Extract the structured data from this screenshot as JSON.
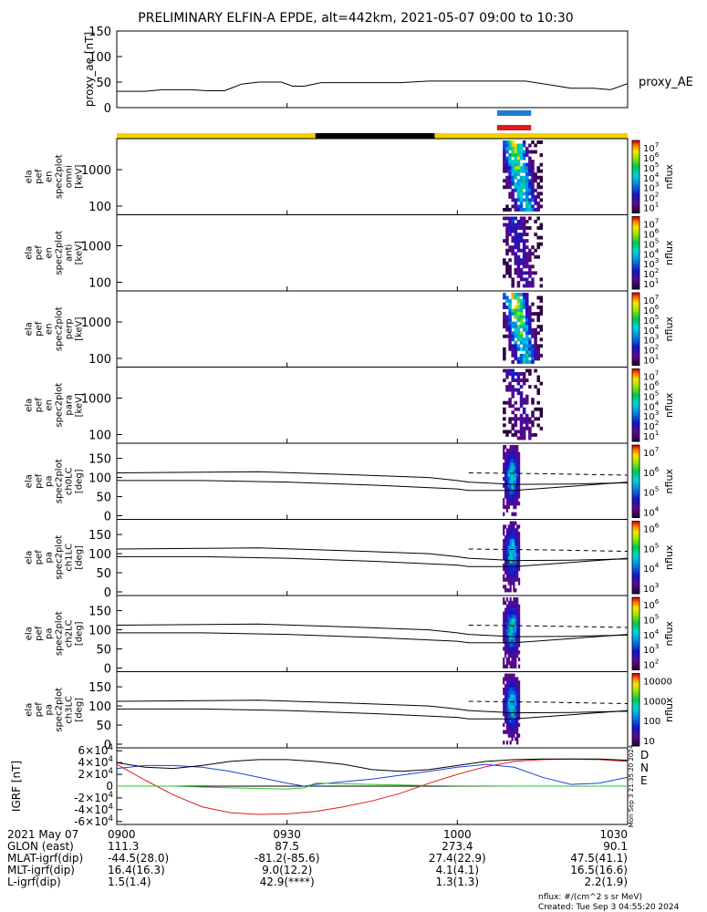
{
  "chart_data": {
    "type": "spectrogram",
    "title": "PRELIMINARY ELFIN-A EPDE, alt=442km, 2021-05-07 09:00 to 10:30",
    "xlim": [
      "09:00",
      "10:30"
    ],
    "colors": {
      "background": "#ffffff",
      "axes": "#000000",
      "state_bar_science": "#f5d000",
      "state_bar_eclipse": "#000000",
      "marker_blue": "#1e7bd6",
      "marker_red": "#e01a1a",
      "grf_d": "#e01a1a",
      "grf_n": "#1f3fd0",
      "grf_e": "#29c329"
    },
    "proxy_ae": {
      "ylabel": "proxy_ae [nT]",
      "legend": "proxy_AE",
      "ylim": [
        0,
        150
      ],
      "yticks": [
        "150",
        "100",
        "50",
        "0"
      ],
      "series": [
        {
          "t": "09:00",
          "v": 32
        },
        {
          "t": "09:05",
          "v": 32
        },
        {
          "t": "09:08",
          "v": 35
        },
        {
          "t": "09:13",
          "v": 35
        },
        {
          "t": "09:16",
          "v": 33
        },
        {
          "t": "09:19",
          "v": 33
        },
        {
          "t": "09:22",
          "v": 46
        },
        {
          "t": "09:25",
          "v": 50
        },
        {
          "t": "09:29",
          "v": 50
        },
        {
          "t": "09:31",
          "v": 42
        },
        {
          "t": "09:33",
          "v": 42
        },
        {
          "t": "09:36",
          "v": 49
        },
        {
          "t": "09:50",
          "v": 49
        },
        {
          "t": "09:55",
          "v": 52
        },
        {
          "t": "10:00",
          "v": 52
        },
        {
          "t": "10:06",
          "v": 52
        },
        {
          "t": "10:12",
          "v": 52
        },
        {
          "t": "10:16",
          "v": 45
        },
        {
          "t": "10:20",
          "v": 38
        },
        {
          "t": "10:24",
          "v": 38
        },
        {
          "t": "10:27",
          "v": 35
        },
        {
          "t": "10:30",
          "v": 47
        }
      ]
    },
    "state_bar": [
      {
        "start": "09:00",
        "end": "09:35",
        "state": "science"
      },
      {
        "start": "09:35",
        "end": "09:56",
        "state": "eclipse"
      },
      {
        "start": "09:56",
        "end": "10:30",
        "state": "science"
      }
    ],
    "markers": [
      {
        "color": "blue",
        "start": "10:07",
        "end": "10:13"
      },
      {
        "color": "red",
        "start": "10:07",
        "end": "10:13"
      }
    ],
    "energy_panels": [
      {
        "ylabel": [
          "ela",
          "pef",
          "en",
          "spec2plot",
          "omni",
          "[keV]"
        ],
        "yticks": [
          "1000",
          "100"
        ],
        "cbar_ticks": [
          "10^7",
          "10^6",
          "10^5",
          "10^4",
          "10^3",
          "10^2",
          "10^1"
        ],
        "cbar_label": "nflux",
        "intensity": 1.0
      },
      {
        "ylabel": [
          "ela",
          "pef",
          "en",
          "spec2plot",
          "anti",
          "[keV]"
        ],
        "yticks": [
          "1000",
          "100"
        ],
        "cbar_ticks": [
          "10^7",
          "10^6",
          "10^5",
          "10^4",
          "10^3",
          "10^2",
          "10^1"
        ],
        "cbar_label": "nflux",
        "intensity": 0.35
      },
      {
        "ylabel": [
          "ela",
          "pef",
          "en",
          "spec2plot",
          "perp",
          "[keV]"
        ],
        "yticks": [
          "1000",
          "100"
        ],
        "cbar_ticks": [
          "10^7",
          "10^6",
          "10^5",
          "10^4",
          "10^3",
          "10^2",
          "10^1"
        ],
        "cbar_label": "nflux",
        "intensity": 1.0
      },
      {
        "ylabel": [
          "ela",
          "pef",
          "en",
          "spec2plot",
          "para",
          "[keV]"
        ],
        "yticks": [
          "1000",
          "100"
        ],
        "cbar_ticks": [
          "10^7",
          "10^6",
          "10^5",
          "10^4",
          "10^3",
          "10^2",
          "10^1"
        ],
        "cbar_label": "nflux",
        "intensity": 0.3
      }
    ],
    "pitch_panels": [
      {
        "ylabel": [
          "ela",
          "pef",
          "pa",
          "spec2plot",
          "ch0LC",
          "[deg]"
        ],
        "yticks": [
          "150",
          "100",
          "50",
          "0"
        ],
        "cbar_ticks": [
          "10^7",
          "10^6",
          "10^5",
          "10^4"
        ],
        "cbar_label": "nflux"
      },
      {
        "ylabel": [
          "ela",
          "pef",
          "pa",
          "spec2plot",
          "ch1LC",
          "[deg]"
        ],
        "yticks": [
          "150",
          "100",
          "50",
          "0"
        ],
        "cbar_ticks": [
          "10^6",
          "10^5",
          "10^4",
          "10^3"
        ],
        "cbar_label": "nflux"
      },
      {
        "ylabel": [
          "ela",
          "pef",
          "pa",
          "spec2plot",
          "ch2LC",
          "[deg]"
        ],
        "yticks": [
          "150",
          "100",
          "50",
          "0"
        ],
        "cbar_ticks": [
          "10^6",
          "10^5",
          "10^4",
          "10^3",
          "10^2"
        ],
        "cbar_label": "nflux"
      },
      {
        "ylabel": [
          "ela",
          "pef",
          "pa",
          "spec2plot",
          "ch3LC",
          "[deg]"
        ],
        "yticks": [
          "150",
          "100",
          "50",
          "0"
        ],
        "cbar_ticks": [
          "10000",
          "1000",
          "100",
          "10"
        ],
        "cbar_label": "nflux"
      }
    ],
    "igrf": {
      "ylabel": "IGRF [nT]",
      "yticks": [
        "6×10^4",
        "4×10^4",
        "2×10^4",
        "0",
        "-2×10^4",
        "-4×10^4",
        "-6×10^4"
      ],
      "ylim": [
        -65000,
        65000
      ],
      "legend": [
        "D",
        "N",
        "E"
      ],
      "series": [
        {
          "name": "D",
          "points": [
            [
              0,
              37000
            ],
            [
              5,
              10000
            ],
            [
              10,
              -15000
            ],
            [
              15,
              -35000
            ],
            [
              20,
              -45000
            ],
            [
              25,
              -48000
            ],
            [
              30,
              -47000
            ],
            [
              35,
              -43000
            ],
            [
              40,
              -35000
            ],
            [
              45,
              -25000
            ],
            [
              50,
              -12000
            ],
            [
              55,
              5000
            ],
            [
              60,
              20000
            ],
            [
              65,
              33000
            ],
            [
              70,
              42000
            ],
            [
              75,
              45000
            ],
            [
              80,
              46000
            ],
            [
              85,
              45000
            ],
            [
              90,
              42000
            ]
          ]
        },
        {
          "name": "N",
          "points": [
            [
              0,
              30000
            ],
            [
              5,
              35000
            ],
            [
              10,
              35000
            ],
            [
              15,
              32000
            ],
            [
              20,
              25000
            ],
            [
              25,
              15000
            ],
            [
              30,
              5000
            ],
            [
              33,
              0
            ],
            [
              35,
              3000
            ],
            [
              45,
              12000
            ],
            [
              55,
              25000
            ],
            [
              60,
              32000
            ],
            [
              65,
              37000
            ],
            [
              70,
              32000
            ],
            [
              75,
              15000
            ],
            [
              80,
              3000
            ],
            [
              85,
              5000
            ],
            [
              90,
              15000
            ]
          ]
        },
        {
          "name": "E",
          "points": [
            [
              0,
              0
            ],
            [
              10,
              0
            ],
            [
              20,
              -3000
            ],
            [
              30,
              -5000
            ],
            [
              33,
              -3000
            ],
            [
              35,
              5000
            ],
            [
              45,
              3000
            ],
            [
              55,
              1000
            ],
            [
              60,
              500
            ],
            [
              70,
              0
            ],
            [
              80,
              0
            ],
            [
              90,
              0
            ]
          ]
        },
        {
          "name": "total",
          "points": [
            [
              0,
              40000
            ],
            [
              5,
              32000
            ],
            [
              10,
              30000
            ],
            [
              15,
              35000
            ],
            [
              20,
              42000
            ],
            [
              25,
              45000
            ],
            [
              30,
              45000
            ],
            [
              35,
              42000
            ],
            [
              40,
              37000
            ],
            [
              45,
              28000
            ],
            [
              50,
              25000
            ],
            [
              55,
              28000
            ],
            [
              60,
              35000
            ],
            [
              65,
              42000
            ],
            [
              70,
              45000
            ],
            [
              75,
              46000
            ],
            [
              80,
              46000
            ],
            [
              85,
              46000
            ],
            [
              90,
              44000
            ]
          ]
        }
      ]
    },
    "side_labels": {
      "igrf_side": "Mon Sep 3 21:35:20 2024"
    },
    "orbit_table": {
      "row_labels": [
        "2021 May 07",
        "GLON (east)",
        "MLAT-igrf(dip)",
        "MLT-igrf(dip)",
        "L-igrf(dip)"
      ],
      "columns": [
        {
          "time": "0900",
          "values": [
            "111.3",
            "-44.5(28.0)",
            "16.4(16.3)",
            "1.5(1.4)"
          ]
        },
        {
          "time": "0930",
          "values": [
            "87.5",
            "-81.2(-85.6)",
            "9.0(12.2)",
            "42.9(****)"
          ]
        },
        {
          "time": "1000",
          "values": [
            "273.4",
            "27.4(22.9)",
            "4.1(4.1)",
            "1.3(1.3)"
          ]
        },
        {
          "time": "1030",
          "values": [
            "90.1",
            "47.5(41.1)",
            "16.5(16.6)",
            "2.2(1.9)"
          ]
        }
      ]
    },
    "footer": {
      "units": "nflux: #/(cm^2 s sr MeV)",
      "created": "Created: Tue Sep  3 04:55:20 2024"
    }
  }
}
